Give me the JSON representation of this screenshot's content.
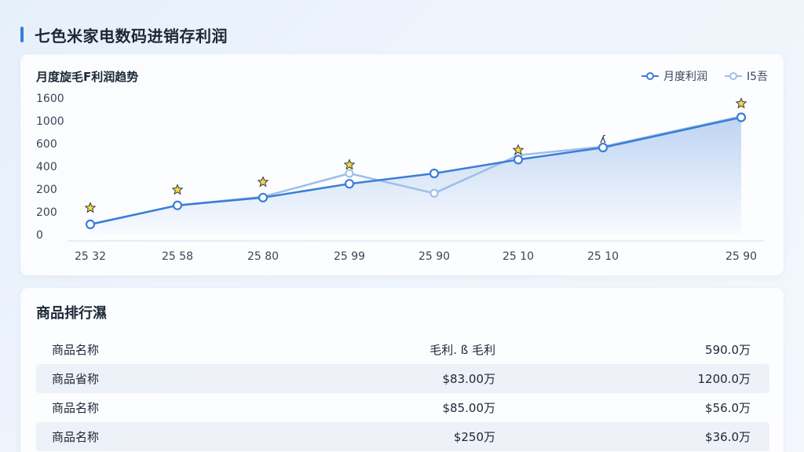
{
  "page": {
    "title": "七色米家电数码进销存利润"
  },
  "chart_data": {
    "type": "line",
    "title": "月度旋毛F利润趋势",
    "categories": [
      "25 32",
      "25 58",
      "25 80",
      "25 99",
      "25 90",
      "25 10",
      "25 10",
      "25 90"
    ],
    "y_ticks": [
      "1600",
      "1000",
      "600",
      "400",
      "200",
      "200",
      "0"
    ],
    "series": [
      {
        "name": "月度利润",
        "color": "#3b7dd8",
        "values": [
          110,
          330,
          420,
          580,
          700,
          860,
          1000,
          1350
        ],
        "marker": "filled-ring",
        "area": true
      },
      {
        "name": "I5吾",
        "color": "#9dbfe6",
        "values": [
          110,
          330,
          430,
          700,
          470,
          910,
          1010,
          1360
        ],
        "marker": "hollow-ring"
      }
    ],
    "star_markers": [
      {
        "label": "",
        "x_index": 0,
        "y": 300
      },
      {
        "label": "",
        "x_index": 1,
        "y": 510
      },
      {
        "label": "",
        "x_index": 2,
        "y": 600
      },
      {
        "label": "",
        "x_index": 3,
        "y": 800
      },
      {
        "label": "",
        "x_index": 5,
        "y": 970
      },
      {
        "label": "ʎ",
        "x_index": 6,
        "y": 1100
      },
      {
        "label": "",
        "x_index": 7,
        "y": 1510
      }
    ],
    "legend_position": "top-right",
    "grid": false
  },
  "ranking": {
    "title": "商品排行濕",
    "rows": [
      {
        "name": "商品名称",
        "col2": "毛利. ß 毛利",
        "col3": "590.0万"
      },
      {
        "name": "商品省称",
        "col2": "$83.00万",
        "col3": "1200.0万"
      },
      {
        "name": "商品名称",
        "col2": "$85.00万",
        "col3": "$56.0万"
      },
      {
        "name": "商品名称",
        "col2": "$250万",
        "col3": "$36.0万"
      }
    ]
  }
}
